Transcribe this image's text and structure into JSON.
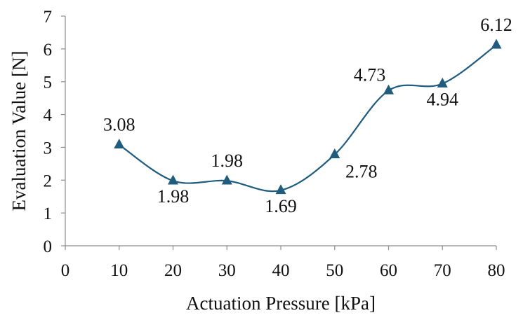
{
  "chart_data": {
    "type": "line",
    "title": "",
    "xlabel": "Actuation Pressure [kPa]",
    "ylabel": "Evaluation Value [N]",
    "xlim": [
      0,
      80
    ],
    "ylim": [
      0,
      7
    ],
    "xticks": [
      0,
      10,
      20,
      30,
      40,
      50,
      60,
      70,
      80
    ],
    "yticks": [
      0,
      1,
      2,
      3,
      4,
      5,
      6,
      7
    ],
    "grid": false,
    "legend": "none",
    "smooth": true,
    "marker": "triangle",
    "series": [
      {
        "color": "#1f5c7d",
        "x": [
          10,
          20,
          30,
          40,
          50,
          60,
          70,
          80
        ],
        "y": [
          3.08,
          1.98,
          1.98,
          1.69,
          2.78,
          4.73,
          4.94,
          6.12
        ],
        "labels": [
          "3.08",
          "1.98",
          "1.98",
          "1.69",
          "2.78",
          "4.73",
          "4.94",
          "6.12"
        ],
        "label_positions": [
          "above",
          "below",
          "above",
          "below",
          "below-right",
          "above-left",
          "below",
          "above"
        ]
      }
    ]
  }
}
